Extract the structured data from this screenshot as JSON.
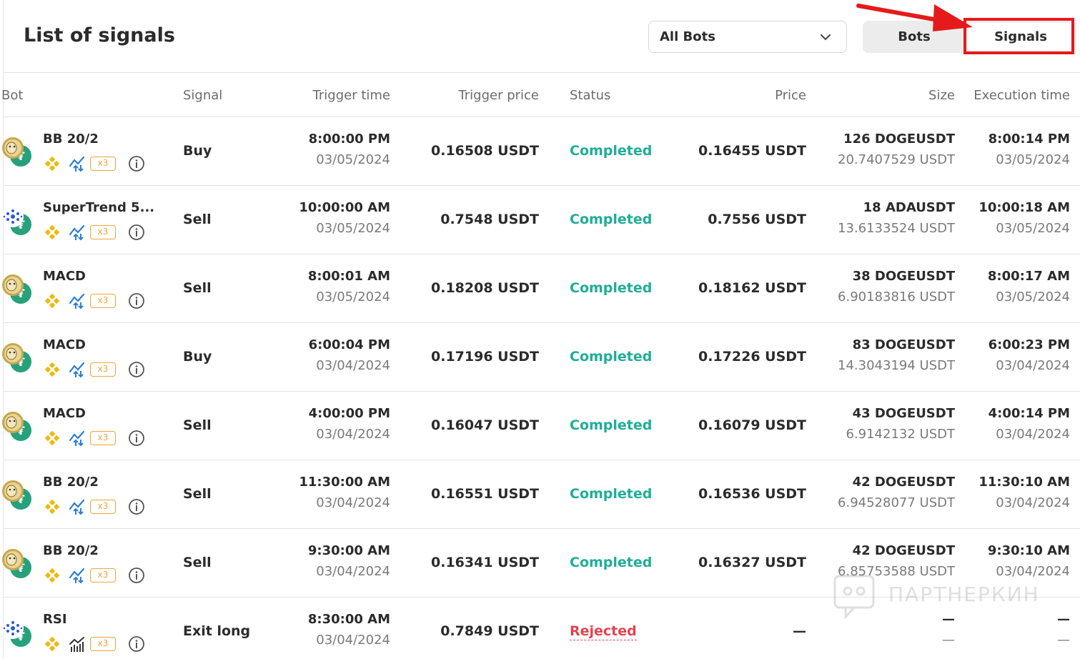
{
  "header": {
    "title": "List of signals",
    "bot_filter": "All Bots",
    "tabs": [
      "Bots",
      "Signals"
    ],
    "active_tab": "Signals"
  },
  "columns": {
    "bot": "Bot",
    "signal": "Signal",
    "trigger_time": "Trigger time",
    "trigger_price": "Trigger price",
    "status": "Status",
    "price": "Price",
    "size": "Size",
    "execution_time": "Execution time"
  },
  "badge_label": "x3",
  "rows": [
    {
      "coin": "doge",
      "bot": "BB 20/2",
      "chart_icon": "trend",
      "signal": "Buy",
      "trigger_time": "8:00:00 PM",
      "trigger_date": "03/05/2024",
      "trigger_price": "0.16508 USDT",
      "status": "Completed",
      "price": "0.16455 USDT",
      "size": "126 DOGEUSDT",
      "size_usdt": "20.7407529 USDT",
      "exec_time": "8:00:14 PM",
      "exec_date": "03/05/2024"
    },
    {
      "coin": "ada",
      "bot": "SuperTrend 5...",
      "chart_icon": "trend",
      "signal": "Sell",
      "trigger_time": "10:00:00 AM",
      "trigger_date": "03/05/2024",
      "trigger_price": "0.7548 USDT",
      "status": "Completed",
      "price": "0.7556 USDT",
      "size": "18 ADAUSDT",
      "size_usdt": "13.6133524 USDT",
      "exec_time": "10:00:18 AM",
      "exec_date": "03/05/2024"
    },
    {
      "coin": "doge",
      "bot": "MACD",
      "chart_icon": "trend",
      "signal": "Sell",
      "trigger_time": "8:00:01 AM",
      "trigger_date": "03/05/2024",
      "trigger_price": "0.18208 USDT",
      "status": "Completed",
      "price": "0.18162 USDT",
      "size": "38 DOGEUSDT",
      "size_usdt": "6.90183816 USDT",
      "exec_time": "8:00:17 AM",
      "exec_date": "03/05/2024"
    },
    {
      "coin": "doge",
      "bot": "MACD",
      "chart_icon": "trend",
      "signal": "Buy",
      "trigger_time": "6:00:04 PM",
      "trigger_date": "03/04/2024",
      "trigger_price": "0.17196 USDT",
      "status": "Completed",
      "price": "0.17226 USDT",
      "size": "83 DOGEUSDT",
      "size_usdt": "14.3043194 USDT",
      "exec_time": "6:00:23 PM",
      "exec_date": "03/04/2024"
    },
    {
      "coin": "doge",
      "bot": "MACD",
      "chart_icon": "trend",
      "signal": "Sell",
      "trigger_time": "4:00:00 PM",
      "trigger_date": "03/04/2024",
      "trigger_price": "0.16047 USDT",
      "status": "Completed",
      "price": "0.16079 USDT",
      "size": "43 DOGEUSDT",
      "size_usdt": "6.9142132 USDT",
      "exec_time": "4:00:14 PM",
      "exec_date": "03/04/2024"
    },
    {
      "coin": "doge",
      "bot": "BB 20/2",
      "chart_icon": "trend",
      "signal": "Sell",
      "trigger_time": "11:30:00 AM",
      "trigger_date": "03/04/2024",
      "trigger_price": "0.16551 USDT",
      "status": "Completed",
      "price": "0.16536 USDT",
      "size": "42 DOGEUSDT",
      "size_usdt": "6.94528077 USDT",
      "exec_time": "11:30:10 AM",
      "exec_date": "03/04/2024"
    },
    {
      "coin": "doge",
      "bot": "BB 20/2",
      "chart_icon": "trend",
      "signal": "Sell",
      "trigger_time": "9:30:00 AM",
      "trigger_date": "03/04/2024",
      "trigger_price": "0.16341 USDT",
      "status": "Completed",
      "price": "0.16327 USDT",
      "size": "42 DOGEUSDT",
      "size_usdt": "6.85753588 USDT",
      "exec_time": "9:30:10 AM",
      "exec_date": "03/04/2024"
    },
    {
      "coin": "ada",
      "bot": "RSI",
      "chart_icon": "bars",
      "signal": "Exit long",
      "trigger_time": "8:30:00 AM",
      "trigger_date": "03/04/2024",
      "trigger_price": "0.7849 USDT",
      "status": "Rejected",
      "price": "—",
      "size": "—",
      "size_usdt": "—",
      "exec_time": "—",
      "exec_date": "—"
    }
  ],
  "watermark": "ПАРТНЕРКИН",
  "colors": {
    "completed": "#1fae98",
    "rejected": "#e0454f",
    "badge": "#f0a43a",
    "annotation": "#e51b1b"
  }
}
